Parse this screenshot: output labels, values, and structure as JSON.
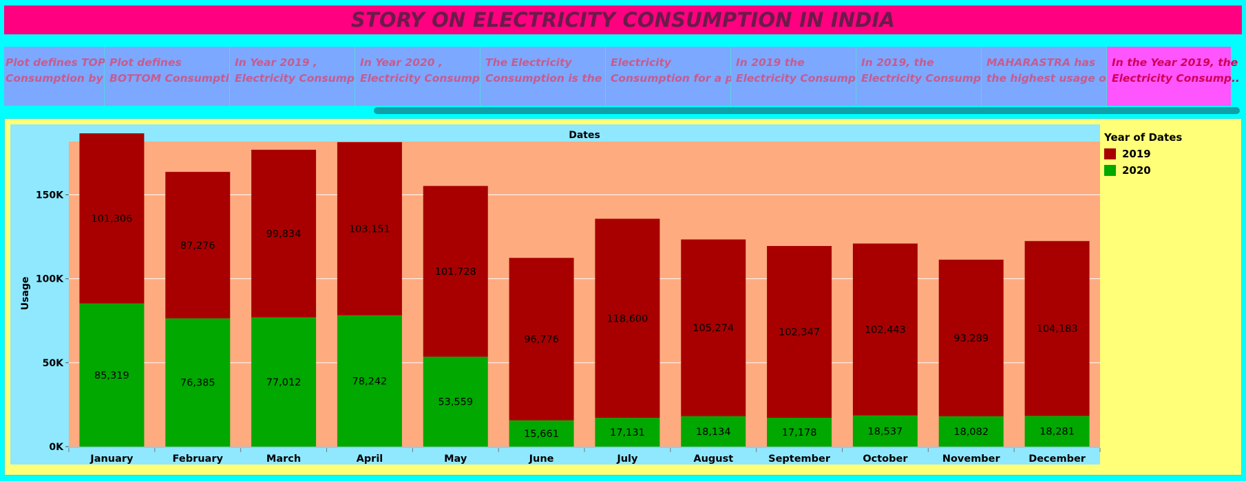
{
  "story": {
    "title": "STORY ON ELECTRICITY CONSUMPTION IN INDIA",
    "points": [
      {
        "line1": "Plot defines TOP",
        "line2": "Consumption by .."
      },
      {
        "line1": "Plot defines",
        "line2": "BOTTOM Consumpti.."
      },
      {
        "line1": "In Year 2019 ,",
        "line2": "Electricity Consump.."
      },
      {
        "line1": "In Year 2020 ,",
        "line2": "Electricity Consump.."
      },
      {
        "line1": "The Electricity",
        "line2": "Consumption is the .."
      },
      {
        "line1": "Electricity",
        "line2": "Consumption for a p.."
      },
      {
        "line1": "In 2019 the",
        "line2": "Electricity Consump.."
      },
      {
        "line1": "In 2019, the",
        "line2": "Electricity Consump.."
      },
      {
        "line1": "MAHARASTRA has",
        "line2": "the highest usage o.."
      },
      {
        "line1": "In the Year 2019, the",
        "line2": "Electricity Consump.."
      }
    ]
  },
  "colors": {
    "y2019": "#a80000",
    "y2020": "#00a800",
    "plot_bg": "#ffab80",
    "panel_bg": "#90e8ff"
  },
  "chart_data": {
    "type": "bar",
    "stacked": true,
    "title": "Dates",
    "ylabel": "Usage",
    "xlabel": "",
    "ylim": [
      0,
      190000
    ],
    "yticks": [
      0,
      50000,
      100000,
      150000
    ],
    "ytick_labels": [
      "0K",
      "50K",
      "100K",
      "150K"
    ],
    "categories": [
      "January",
      "February",
      "March",
      "April",
      "May",
      "June",
      "July",
      "August",
      "September",
      "October",
      "November",
      "December"
    ],
    "legend_title": "Year of Dates",
    "legend_position": "right",
    "series": [
      {
        "name": "2020",
        "values": [
          85319,
          76385,
          77012,
          78242,
          53559,
          15661,
          17131,
          18134,
          17178,
          18537,
          18082,
          18281
        ],
        "labels": [
          "85,319",
          "76,385",
          "77,012",
          "78,242",
          "53,559",
          "15,661",
          "17,131",
          "18,134",
          "17,178",
          "18,537",
          "18,082",
          "18,281"
        ]
      },
      {
        "name": "2019",
        "values": [
          101306,
          87276,
          99834,
          103151,
          101728,
          96776,
          118600,
          105274,
          102347,
          102443,
          93289,
          104183
        ],
        "labels": [
          "101,306",
          "87,276",
          "99,834",
          "103,151",
          "101,728",
          "96,776",
          "118,600",
          "105,274",
          "102,347",
          "102,443",
          "93,289",
          "104,183"
        ]
      }
    ]
  }
}
